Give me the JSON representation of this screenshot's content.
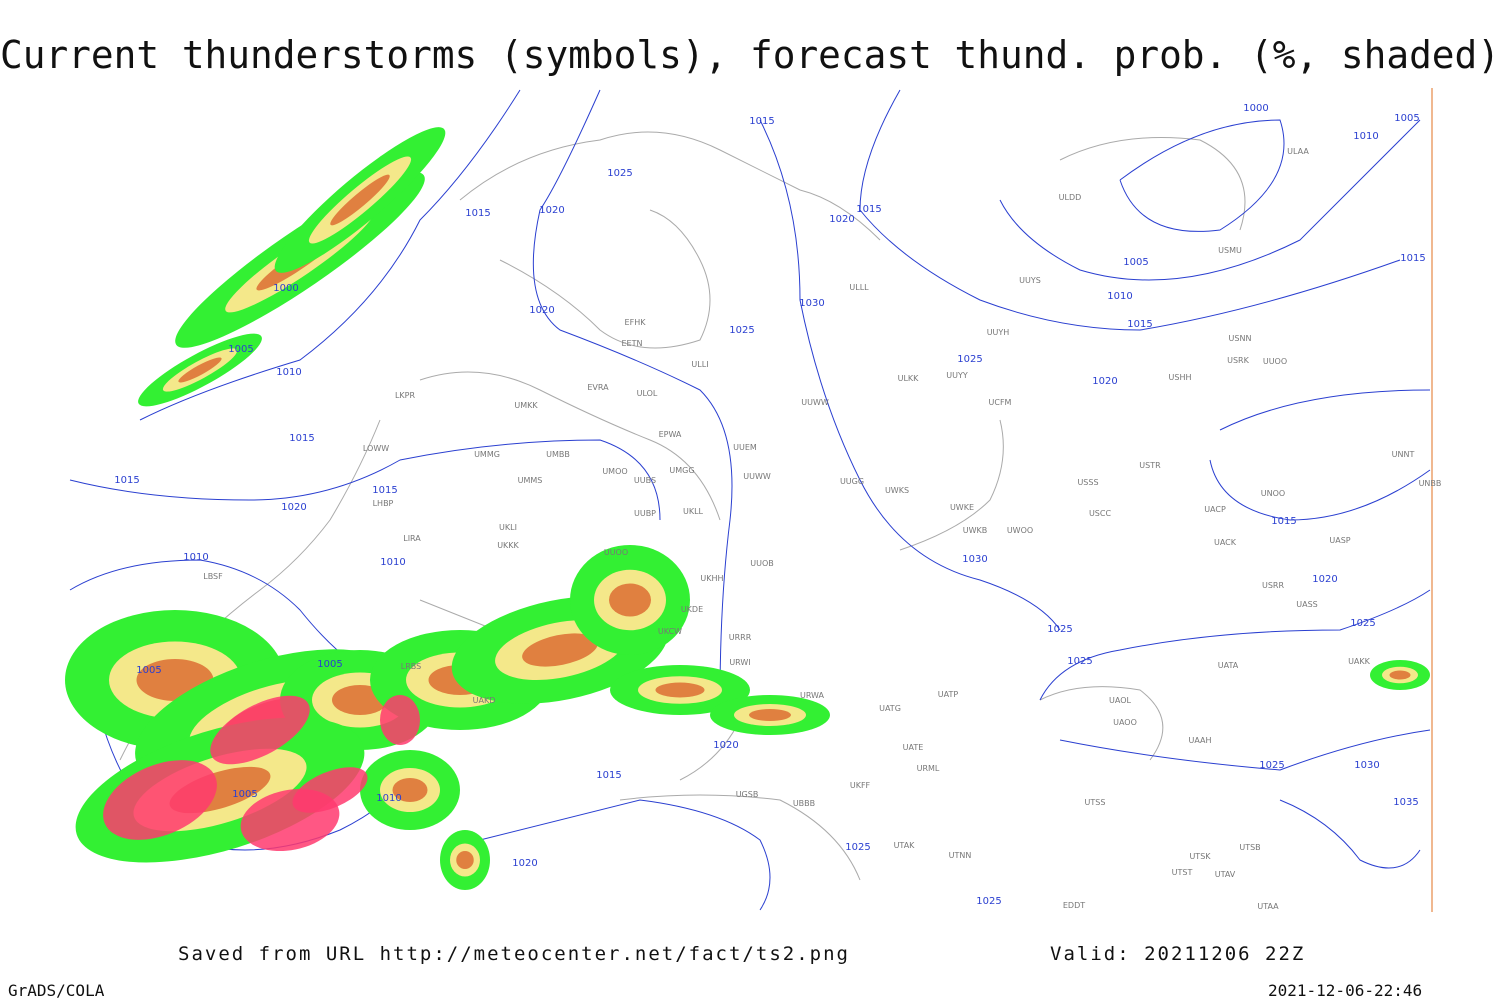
{
  "title": "Current thunderstorms (symbols), forecast thund. prob. (%, shaded)",
  "isobar_labels": [
    "1015",
    "1025",
    "1020",
    "1015",
    "1000",
    "1010",
    "1005",
    "1015",
    "1020",
    "1000",
    "1005",
    "1010",
    "1020",
    "1025",
    "1030",
    "1025",
    "1020",
    "1015",
    "1010",
    "1005",
    "1015",
    "1015",
    "1015",
    "1015",
    "1020",
    "1010",
    "1010",
    "1005",
    "1005",
    "1005",
    "1010",
    "1015",
    "1020",
    "1020",
    "1025",
    "1030",
    "1025",
    "1025",
    "1025",
    "1020",
    "1015",
    "1025",
    "1030",
    "1035",
    "1025"
  ],
  "stations": [
    "ULDD",
    "UUYS",
    "USMU",
    "UUYH",
    "ULKK",
    "UUYY",
    "UUWW",
    "UUEM",
    "UUWW",
    "UUGG",
    "UWKS",
    "UWKE",
    "UWKB",
    "UWOO",
    "USSS",
    "USCC",
    "USTR",
    "USHH",
    "UACP",
    "UACK",
    "UASP",
    "UNOO",
    "UNNT",
    "UNBB",
    "EFHK",
    "EETN",
    "ULLI",
    "UMKK",
    "EVRA",
    "ULOL",
    "EPWA",
    "UMMG",
    "UMBB",
    "UMMS",
    "UMOO",
    "UUBS",
    "UMGG",
    "UUBP",
    "UKLL",
    "UKLI",
    "UKKK",
    "UUOO",
    "UUOB",
    "UKHH",
    "UKDE",
    "UKCW",
    "URRR",
    "URWI",
    "URWA",
    "UATG",
    "UATP",
    "UATE",
    "URML",
    "UKFF",
    "UGSB",
    "UBBB",
    "UTAK",
    "UTNN",
    "UTSS",
    "UTSB",
    "UTSK",
    "UTAV",
    "UTST",
    "UTAA",
    "EDDT",
    "LKPR",
    "LOWW",
    "LHBP",
    "LIRA",
    "LBSF",
    "LRBS",
    "UAKD",
    "UATA",
    "UAOL",
    "UAOO",
    "UAAH",
    "UAKK",
    "UASS",
    "USRR",
    "USRK",
    "USNN",
    "UUOO",
    "ULAA",
    "ULLL",
    "UCFM"
  ],
  "footer": {
    "source": "Saved from URL http://meteocenter.net/fact/ts2.png",
    "valid": "Valid: 20211206 22Z",
    "software": "GrADS/COLA",
    "timestamp": "2021-12-06-22:46"
  }
}
